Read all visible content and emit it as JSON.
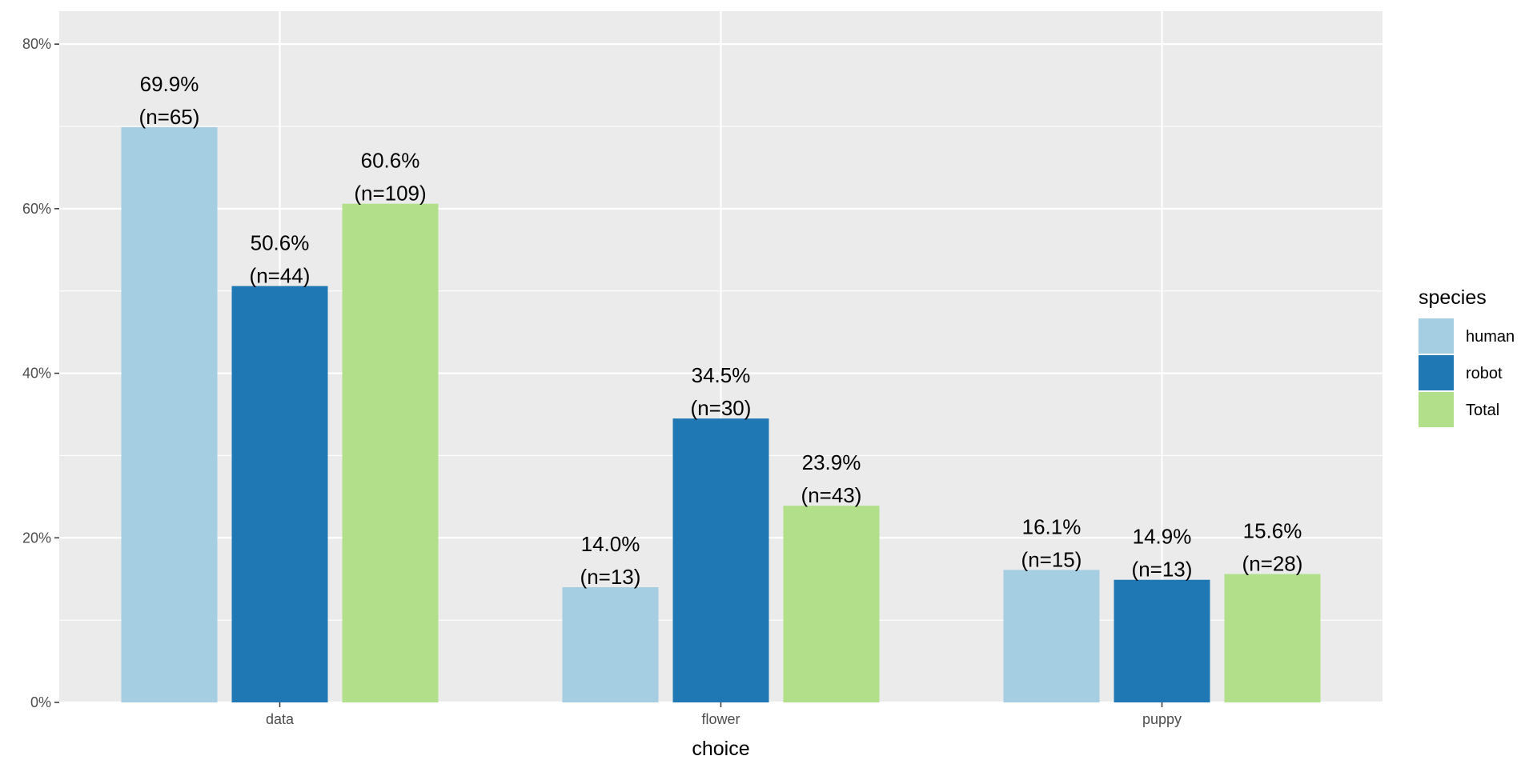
{
  "chart_data": {
    "type": "bar",
    "title": "",
    "xlabel": "choice",
    "ylabel": "",
    "categories": [
      "data",
      "flower",
      "puppy"
    ],
    "ylim": [
      0,
      0.84
    ],
    "y_ticks": [
      0,
      0.2,
      0.4,
      0.6,
      0.8
    ],
    "y_tick_labels": [
      "0%",
      "20%",
      "40%",
      "60%",
      "80%"
    ],
    "grid": true,
    "legend": {
      "title": "species",
      "position": "right"
    },
    "series": [
      {
        "name": "human",
        "color": "#a6cee3",
        "values": [
          0.699,
          0.14,
          0.161
        ],
        "percent_labels": [
          "69.9%",
          "14.0%",
          "16.1%"
        ],
        "n_labels": [
          "(n=65)",
          "(n=13)",
          "(n=15)"
        ]
      },
      {
        "name": "robot",
        "color": "#1f78b4",
        "values": [
          0.506,
          0.345,
          0.149
        ],
        "percent_labels": [
          "50.6%",
          "34.5%",
          "14.9%"
        ],
        "n_labels": [
          "(n=44)",
          "(n=30)",
          "(n=13)"
        ]
      },
      {
        "name": "Total",
        "color": "#b2df8a",
        "values": [
          0.606,
          0.239,
          0.156
        ],
        "percent_labels": [
          "60.6%",
          "23.9%",
          "15.6%"
        ],
        "n_labels": [
          "(n=109)",
          "(n=43)",
          "(n=28)"
        ]
      }
    ]
  },
  "colors": {
    "panel_background": "#ebebeb",
    "gridline": "#ffffff",
    "tick": "#333333"
  }
}
